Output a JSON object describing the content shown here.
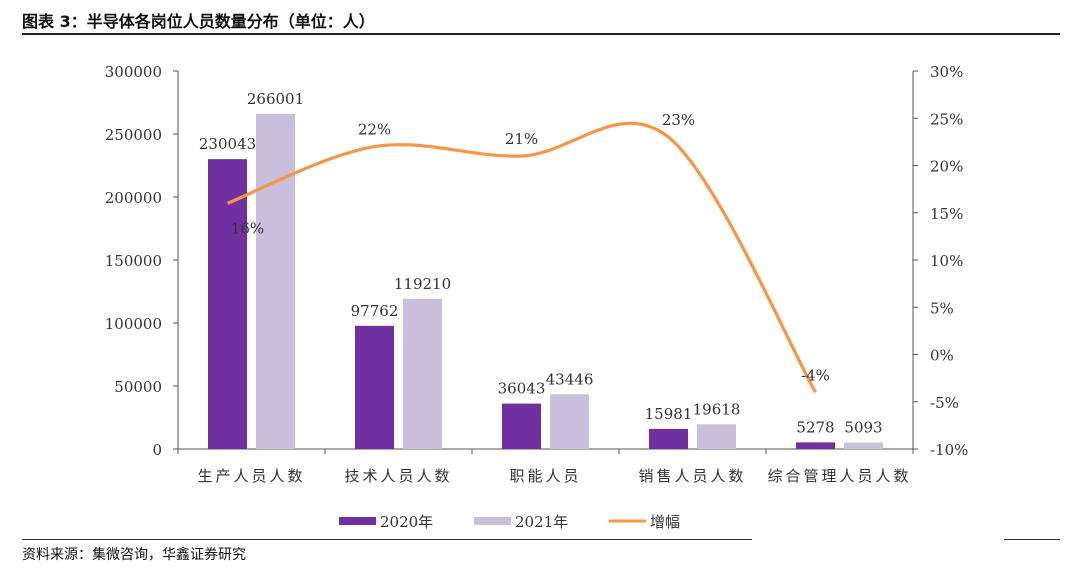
{
  "header": {
    "title": "图表 3：半导体各岗位人员数量分布（单位：人）"
  },
  "footer": {
    "source": "资料来源：集微咨询，华鑫证券研究"
  },
  "chart_data": {
    "type": "bar",
    "categories": [
      "生产人员人数",
      "技术人员人数",
      "职能人员",
      "销售人员人数",
      "综合管理人员人数"
    ],
    "series": [
      {
        "name": "2020年",
        "kind": "bar",
        "axis": "left",
        "color": "#7030a0",
        "values": [
          230043,
          97762,
          36043,
          15981,
          5278
        ]
      },
      {
        "name": "2021年",
        "kind": "bar",
        "axis": "left",
        "color": "#c9bfdc",
        "values": [
          266001,
          119210,
          43446,
          19618,
          5093
        ]
      },
      {
        "name": "增幅",
        "kind": "line",
        "axis": "right",
        "color": "#f79646",
        "values": [
          16,
          22,
          21,
          23,
          -4
        ]
      }
    ],
    "bar_labels": [
      [
        "230043",
        "97762",
        "36043",
        "15981",
        "5278"
      ],
      [
        "266001",
        "119210",
        "43446",
        "19618",
        "5093"
      ]
    ],
    "line_labels": [
      "16%",
      "22%",
      "21%",
      "23%",
      "-4%"
    ],
    "y_left": {
      "min": 0,
      "max": 300000,
      "ticks": [
        "0",
        "50000",
        "100000",
        "150000",
        "200000",
        "250000",
        "300000"
      ]
    },
    "y_right": {
      "min": -10,
      "max": 30,
      "ticks": [
        "-10%",
        "-5%",
        "0%",
        "5%",
        "10%",
        "15%",
        "20%",
        "25%",
        "30%"
      ]
    },
    "legend": {
      "position": "bottom-center",
      "items": [
        "2020年",
        "2021年",
        "增幅"
      ]
    },
    "grid": false
  }
}
